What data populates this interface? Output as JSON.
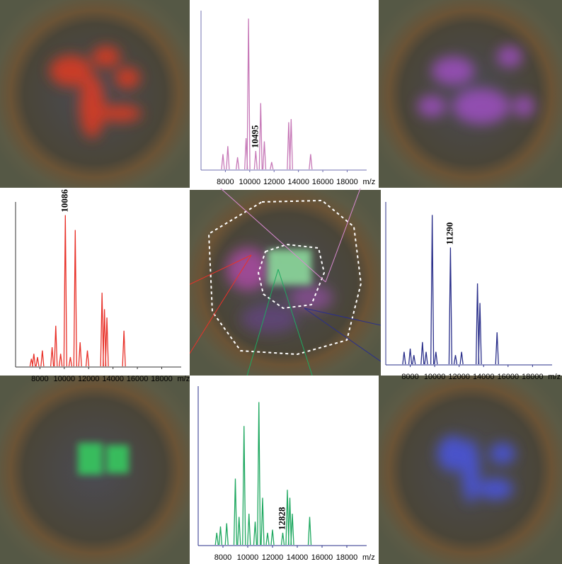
{
  "chart_data": [
    {
      "type": "spectrum",
      "color": "#c77ab8",
      "axis_color": "#7070b0",
      "x": [
        7800,
        8200,
        9000,
        9700,
        9900,
        10495,
        10900,
        11200,
        11800,
        13200,
        13400,
        15000
      ],
      "values": [
        10,
        15,
        8,
        20,
        95,
        12,
        42,
        18,
        5,
        30,
        32,
        10
      ],
      "xlim": [
        6000,
        19600
      ],
      "ylim": [
        0,
        100
      ],
      "xticks": [
        8000,
        10000,
        12000,
        14000,
        16000,
        18000
      ],
      "xlabel": "m/z",
      "annotations": [
        {
          "x": 10495
        }
      ]
    },
    {
      "type": "spectrum",
      "color": "#e8322a",
      "axis_color": "#333333",
      "x": [
        7300,
        7500,
        7800,
        8200,
        9000,
        9300,
        9700,
        10086,
        10500,
        10900,
        11300,
        11900,
        13100,
        13300,
        13500,
        14900
      ],
      "values": [
        5,
        8,
        6,
        10,
        12,
        25,
        8,
        92,
        6,
        83,
        15,
        10,
        45,
        35,
        30,
        22
      ],
      "xlim": [
        6000,
        19600
      ],
      "ylim": [
        0,
        100
      ],
      "xticks": [
        8000,
        10000,
        12000,
        14000,
        16000,
        18000
      ],
      "xlabel": "m/z",
      "annotations": [
        {
          "x": 10086
        }
      ]
    },
    {
      "type": "spectrum",
      "color": "#2a2f8a",
      "axis_color": "#2a2f8a",
      "x": [
        7500,
        8000,
        8300,
        9000,
        9300,
        9800,
        10100,
        11290,
        11700,
        12200,
        13500,
        13700,
        15100
      ],
      "values": [
        8,
        10,
        6,
        14,
        8,
        92,
        8,
        72,
        6,
        8,
        50,
        38,
        20
      ],
      "xlim": [
        6000,
        19600
      ],
      "ylim": [
        0,
        100
      ],
      "xticks": [
        8000,
        10000,
        12000,
        14000,
        16000,
        18000
      ],
      "xlabel": "m/z",
      "annotations": [
        {
          "x": 11290
        }
      ]
    },
    {
      "type": "spectrum",
      "color": "#1fa860",
      "axis_color": "#2a2f8a",
      "x": [
        7500,
        7800,
        8300,
        9000,
        9300,
        9700,
        10100,
        10600,
        10900,
        11200,
        11600,
        12000,
        12828,
        13200,
        13400,
        13600,
        15000
      ],
      "values": [
        8,
        12,
        14,
        42,
        18,
        75,
        20,
        15,
        90,
        30,
        8,
        10,
        8,
        35,
        30,
        20,
        18
      ],
      "xlim": [
        6000,
        19600
      ],
      "ylim": [
        0,
        100
      ],
      "xticks": [
        8000,
        10000,
        12000,
        14000,
        16000,
        18000
      ],
      "xlabel": "m/z",
      "annotations": [
        {
          "x": 12828
        }
      ]
    }
  ]
}
